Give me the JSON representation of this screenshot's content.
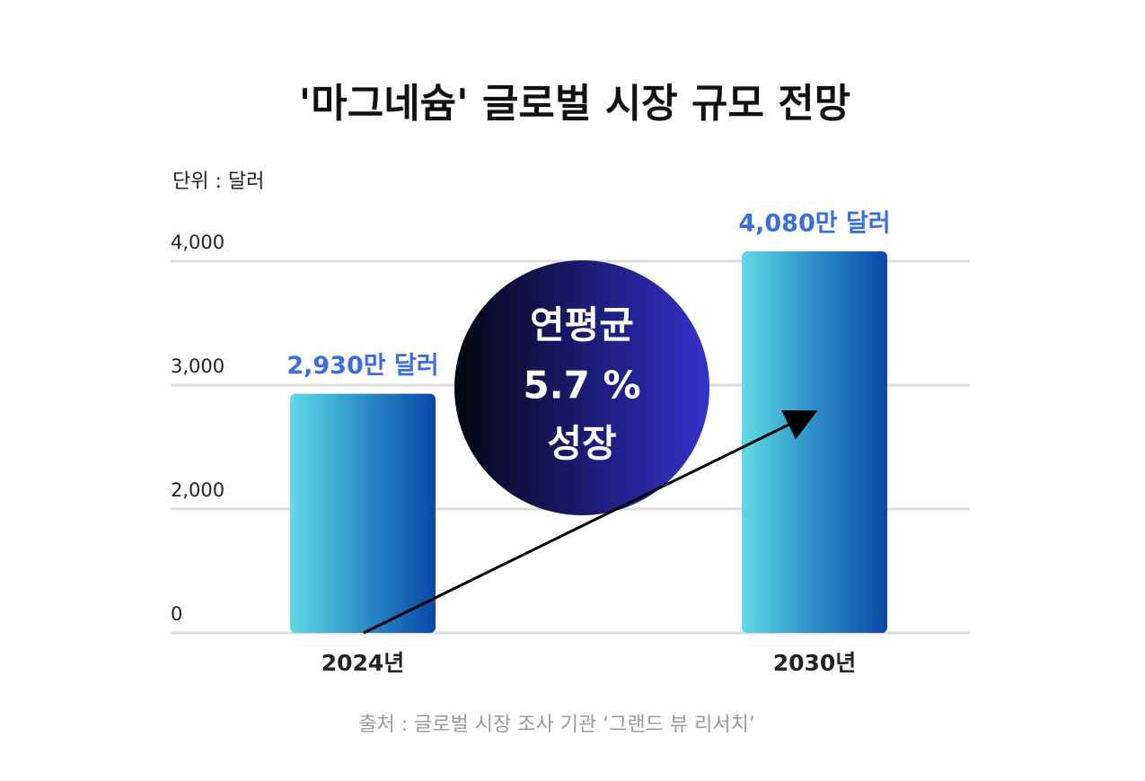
{
  "chart_data": {
    "type": "bar",
    "title": "'마그네슘' 글로벌 시장 규모 전망",
    "unit_label": "단위 : 달러",
    "categories": [
      "2024년",
      "2030년"
    ],
    "values": [
      2930,
      4080
    ],
    "value_labels": [
      "2,930만 달러",
      "4,080만 달러"
    ],
    "ylim": [
      0,
      4000
    ],
    "yticks": [
      {
        "value": 0,
        "label": "0"
      },
      {
        "value": 2000,
        "label": "2,000"
      },
      {
        "value": 3000,
        "label": "3,000"
      },
      {
        "value": 4000,
        "label": "4,000"
      }
    ],
    "grid": true,
    "annotation": [
      "연평균",
      "5.7 %",
      "성장"
    ],
    "source": "출처 : 글로벌 시장 조사 기관 ‘그랜드 뷰 리서치’"
  }
}
